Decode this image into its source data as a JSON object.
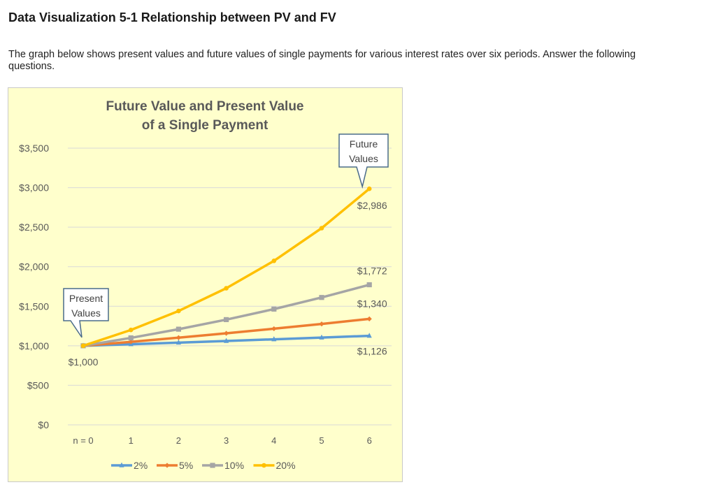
{
  "page": {
    "heading": "Data Visualization 5-1 Relationship between PV and FV",
    "intro": "The graph below shows present values and future values of single payments for various interest rates over six periods. Answer the following questions."
  },
  "colors": {
    "background": "#ffffcc",
    "gridline": "#d9d9d9",
    "axis_text": "#595959",
    "callout_border": "#4a6b8a"
  },
  "chart_data": {
    "type": "line",
    "title_lines": [
      "Future Value and Present Value",
      "of a Single Payment"
    ],
    "x": [
      "n = 0",
      "1",
      "2",
      "3",
      "4",
      "5",
      "6"
    ],
    "ylim": [
      0,
      3500
    ],
    "y_ticks": [
      0,
      500,
      1000,
      1500,
      2000,
      2500,
      3000,
      3500
    ],
    "y_tick_labels": [
      "$0",
      "$500",
      "$1,000",
      "$1,500",
      "$2,000",
      "$2,500",
      "$3,000",
      "$3,500"
    ],
    "grid": true,
    "legend_position": "bottom",
    "series": [
      {
        "name": "2%",
        "color": "#5b9bd5",
        "marker": "triangle",
        "values": [
          1000,
          1020,
          1040,
          1061,
          1082,
          1104,
          1126
        ]
      },
      {
        "name": "5%",
        "color": "#ed7d31",
        "marker": "diamond",
        "values": [
          1000,
          1050,
          1103,
          1158,
          1216,
          1276,
          1340
        ]
      },
      {
        "name": "10%",
        "color": "#a5a5a5",
        "marker": "square",
        "values": [
          1000,
          1100,
          1210,
          1331,
          1464,
          1611,
          1772
        ]
      },
      {
        "name": "20%",
        "color": "#ffc000",
        "marker": "circle",
        "values": [
          1000,
          1200,
          1440,
          1728,
          2074,
          2488,
          2986
        ]
      }
    ],
    "data_labels": [
      {
        "text": "$1,000",
        "x_index": 0,
        "value": 1000
      },
      {
        "text": "$2,986",
        "x_index": 6,
        "value": 2986
      },
      {
        "text": "$1,772",
        "x_index": 6,
        "value": 1772
      },
      {
        "text": "$1,340",
        "x_index": 6,
        "value": 1340
      },
      {
        "text": "$1,126",
        "x_index": 6,
        "value": 1126
      }
    ],
    "callouts": [
      {
        "lines": [
          "Present",
          "Values"
        ],
        "points_to_x_index": 0,
        "points_to_value": 1000
      },
      {
        "lines": [
          "Future",
          "Values"
        ],
        "points_to_x_index": 6,
        "points_to_value": 2986
      }
    ]
  }
}
